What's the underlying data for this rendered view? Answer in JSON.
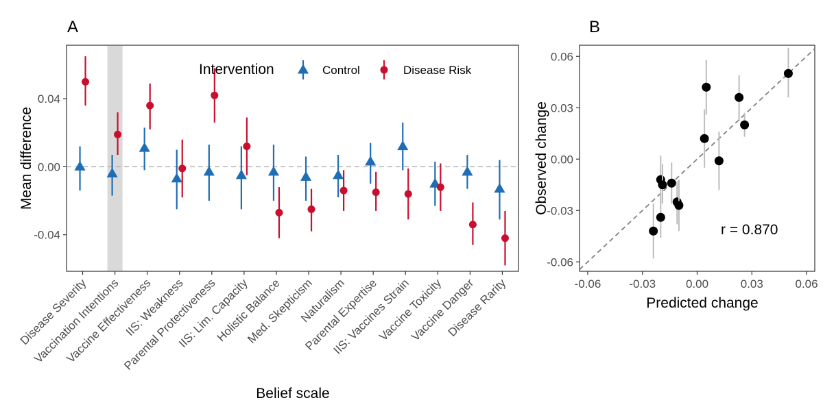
{
  "chart_data": [
    {
      "panel": "A",
      "type": "scatter",
      "subtype": "point-range",
      "xlabel": "Belief scale",
      "ylabel": "Mean difference",
      "ylim": [
        -0.0615,
        0.0715
      ],
      "yticks": [
        -0.04,
        0.0,
        0.04
      ],
      "ytick_labels": [
        "-0.04",
        "0.00",
        "0.04"
      ],
      "reference_line": 0.0,
      "highlight_category": "Vaccination Intentions",
      "legend": {
        "title": "Intervention",
        "placement": "top-center",
        "entries": [
          "Control",
          "Disease Risk"
        ]
      },
      "categories": [
        "Disease Severity",
        "Vaccination Intentions",
        "Vaccine Effectiveness",
        "IIS: Weakness",
        "Parental Protectiveness",
        "IIS: Lim. Capacity",
        "Holistic Balance",
        "Med. Skepticism",
        "Naturalism",
        "Parental Expertise",
        "IIS: Vaccines Strain",
        "Vaccine Toxicity",
        "Vaccine Danger",
        "Disease Rarity"
      ],
      "series": [
        {
          "name": "Control",
          "color": "#1f6db5",
          "marker": "triangle",
          "values": [
            0.0,
            -0.004,
            0.011,
            -0.007,
            -0.003,
            -0.005,
            -0.003,
            -0.006,
            -0.005,
            0.003,
            0.012,
            -0.01,
            -0.003,
            -0.013
          ],
          "lower": [
            -0.014,
            -0.017,
            -0.002,
            -0.025,
            -0.02,
            -0.025,
            -0.02,
            -0.02,
            -0.018,
            -0.01,
            -0.002,
            -0.023,
            -0.013,
            -0.031
          ],
          "upper": [
            0.012,
            0.007,
            0.023,
            0.01,
            0.013,
            0.012,
            0.013,
            0.006,
            0.007,
            0.014,
            0.026,
            0.003,
            0.007,
            0.004
          ]
        },
        {
          "name": "Disease Risk",
          "color": "#c8102e",
          "marker": "circle",
          "values": [
            0.05,
            0.019,
            0.036,
            -0.001,
            0.042,
            0.012,
            -0.027,
            -0.025,
            -0.014,
            -0.015,
            -0.016,
            -0.012,
            -0.034,
            -0.042
          ],
          "lower": [
            0.036,
            0.007,
            0.022,
            -0.018,
            0.026,
            -0.005,
            -0.042,
            -0.038,
            -0.026,
            -0.026,
            -0.031,
            -0.026,
            -0.046,
            -0.058
          ],
          "upper": [
            0.065,
            0.032,
            0.049,
            0.016,
            0.058,
            0.029,
            -0.012,
            -0.013,
            -0.002,
            -0.003,
            -0.001,
            0.002,
            -0.021,
            -0.026
          ]
        }
      ]
    },
    {
      "panel": "B",
      "type": "scatter",
      "xlabel": "Predicted change",
      "ylabel": "Observed change",
      "xlim": [
        -0.0645,
        0.0645
      ],
      "ylim": [
        -0.0655,
        0.0665
      ],
      "xticks": [
        -0.06,
        -0.03,
        0.0,
        0.03,
        0.06
      ],
      "xtick_labels": [
        "-0.06",
        "-0.03",
        "0.00",
        "0.03",
        "0.06"
      ],
      "yticks": [
        -0.06,
        -0.03,
        0.0,
        0.03,
        0.06
      ],
      "ytick_labels": [
        "-0.06",
        "-0.03",
        "0.00",
        "0.03",
        "0.06"
      ],
      "reference_line": "y = x (dashed)",
      "annotation": "r = 0.870",
      "points": [
        {
          "x": 0.05,
          "y": 0.05,
          "lower": 0.036,
          "upper": 0.065
        },
        {
          "x": 0.026,
          "y": 0.02,
          "lower": 0.013,
          "upper": 0.027
        },
        {
          "x": 0.023,
          "y": 0.036,
          "lower": 0.022,
          "upper": 0.049
        },
        {
          "x": 0.005,
          "y": 0.042,
          "lower": 0.026,
          "upper": 0.058
        },
        {
          "x": 0.004,
          "y": 0.012,
          "lower": -0.005,
          "upper": 0.029
        },
        {
          "x": 0.012,
          "y": -0.001,
          "lower": -0.018,
          "upper": 0.016
        },
        {
          "x": -0.02,
          "y": -0.012,
          "lower": -0.026,
          "upper": 0.002
        },
        {
          "x": -0.019,
          "y": -0.015,
          "lower": -0.026,
          "upper": -0.003
        },
        {
          "x": -0.014,
          "y": -0.014,
          "lower": -0.026,
          "upper": -0.002
        },
        {
          "x": -0.011,
          "y": -0.025,
          "lower": -0.038,
          "upper": -0.013
        },
        {
          "x": -0.01,
          "y": -0.027,
          "lower": -0.042,
          "upper": -0.012
        },
        {
          "x": -0.02,
          "y": -0.034,
          "lower": -0.046,
          "upper": -0.021
        },
        {
          "x": -0.024,
          "y": -0.042,
          "lower": -0.058,
          "upper": -0.026
        }
      ]
    }
  ],
  "labels": {
    "panel_a": "A",
    "panel_b": "B"
  }
}
